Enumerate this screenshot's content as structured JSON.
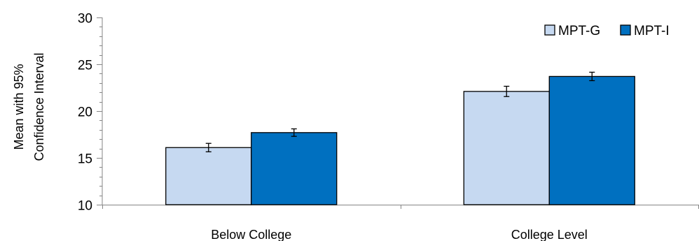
{
  "chart_data": {
    "type": "bar",
    "title": "",
    "xlabel": "",
    "ylabel_lines": [
      "Mean with 95%",
      "Confidence Interval"
    ],
    "categories": [
      "Below College",
      "College Level"
    ],
    "ylim": [
      10,
      30
    ],
    "yticks": [
      10,
      15,
      20,
      25,
      30
    ],
    "y_minor_step": 1,
    "grid": false,
    "legend_position": "top-right",
    "error_bars": true,
    "series": [
      {
        "name": "MPT-G",
        "color": "#c6d9f1",
        "values": [
          16.1,
          22.1
        ],
        "ci_halfwidth": [
          0.45,
          0.55
        ]
      },
      {
        "name": "MPT-I",
        "color": "#0070c0",
        "values": [
          17.7,
          23.7
        ],
        "ci_halfwidth": [
          0.4,
          0.45
        ]
      }
    ]
  }
}
